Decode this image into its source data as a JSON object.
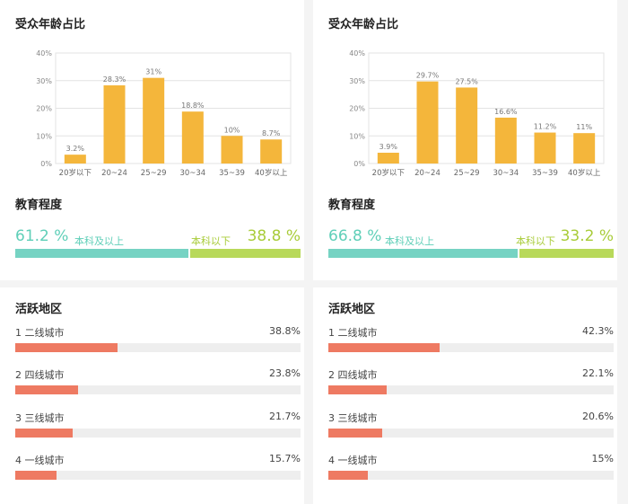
{
  "panels": [
    {
      "age_title": "受众年龄占比",
      "edu_title": "教育程度",
      "edu": {
        "left_pct": "61.2 %",
        "left_label": "本科及以上",
        "left_value": 61.2,
        "right_pct": "38.8 %",
        "right_label": "本科以下",
        "right_value": 38.8
      },
      "region_title": "活跃地区",
      "regions": [
        {
          "label": "1  二线城市",
          "value_text": "38.8%",
          "value": 38.8
        },
        {
          "label": "2  四线城市",
          "value_text": "23.8%",
          "value": 23.8
        },
        {
          "label": "3  三线城市",
          "value_text": "21.7%",
          "value": 21.7
        },
        {
          "label": "4  一线城市",
          "value_text": "15.7%",
          "value": 15.7
        }
      ]
    },
    {
      "age_title": "受众年龄占比",
      "edu_title": "教育程度",
      "edu": {
        "left_pct": "66.8 %",
        "left_label": "本科及以上",
        "left_value": 66.8,
        "right_pct": "33.2 %",
        "right_label": "本科以下",
        "right_value": 33.2
      },
      "region_title": "活跃地区",
      "regions": [
        {
          "label": "1  二线城市",
          "value_text": "42.3%",
          "value": 42.3
        },
        {
          "label": "2  四线城市",
          "value_text": "22.1%",
          "value": 22.1
        },
        {
          "label": "3  三线城市",
          "value_text": "20.6%",
          "value": 20.6
        },
        {
          "label": "4  一线城市",
          "value_text": "15%",
          "value": 15
        }
      ]
    }
  ],
  "colors": {
    "age_bar": "#f4b63b",
    "edu_left": "#76d3c3",
    "edu_right": "#b8d95a",
    "region_bar": "#ee7a62",
    "region_track": "#eeeeee"
  },
  "chart_data": [
    {
      "type": "bar",
      "title": "受众年龄占比",
      "categories": [
        "20岁以下",
        "20~24",
        "25~29",
        "30~34",
        "35~39",
        "40岁以上"
      ],
      "values": [
        3.2,
        28.3,
        31,
        18.8,
        10,
        8.7
      ],
      "value_labels": [
        "3.2%",
        "28.3%",
        "31%",
        "18.8%",
        "10%",
        "8.7%"
      ],
      "yticks": [
        "0%",
        "10%",
        "20%",
        "30%",
        "40%"
      ],
      "ylim": [
        0,
        40
      ],
      "grid": true
    },
    {
      "type": "bar",
      "title": "受众年龄占比",
      "categories": [
        "20岁以下",
        "20~24",
        "25~29",
        "30~34",
        "35~39",
        "40岁以上"
      ],
      "values": [
        3.9,
        29.7,
        27.5,
        16.6,
        11.2,
        11
      ],
      "value_labels": [
        "3.9%",
        "29.7%",
        "27.5%",
        "16.6%",
        "11.2%",
        "11%"
      ],
      "yticks": [
        "0%",
        "10%",
        "20%",
        "30%",
        "40%"
      ],
      "ylim": [
        0,
        40
      ],
      "grid": true
    }
  ]
}
